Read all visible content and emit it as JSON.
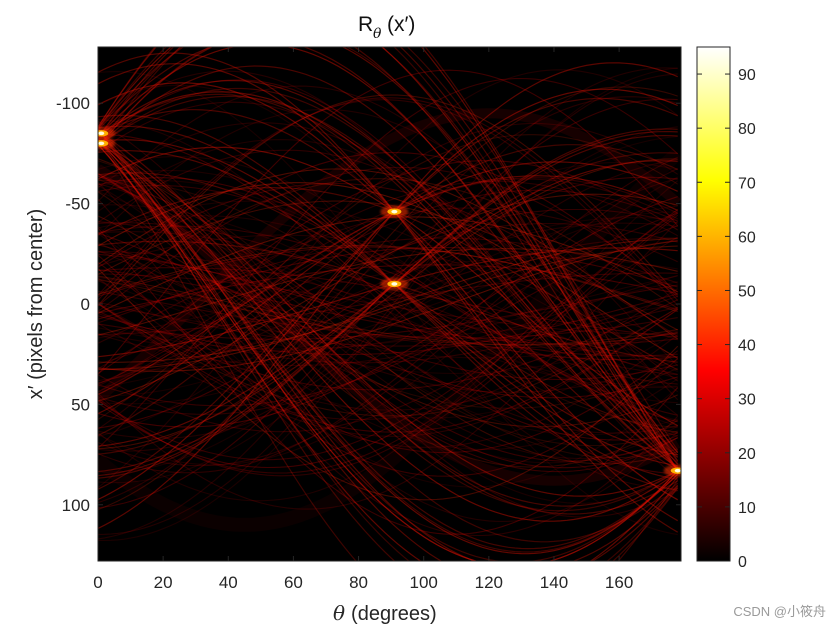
{
  "chart_data": {
    "type": "heatmap",
    "title": {
      "main": "R",
      "subscript": "θ",
      "argument": "(x′)"
    },
    "xlabel": {
      "symbol": "θ",
      "text": "(degrees)"
    },
    "ylabel": "x′ (pixels from center)",
    "xlim": [
      0,
      179
    ],
    "ylim": [
      -128,
      128
    ],
    "y_reversed": true,
    "x_ticks": [
      0,
      20,
      40,
      60,
      80,
      100,
      120,
      140,
      160
    ],
    "x_tick_labels": [
      "0",
      "20",
      "40",
      "60",
      "80",
      "100",
      "120",
      "140",
      "160"
    ],
    "y_ticks": [
      -100,
      -50,
      0,
      50,
      100
    ],
    "y_tick_labels": [
      "-100",
      "-50",
      "0",
      "50",
      "100"
    ],
    "colormap": "hot",
    "colorbar": {
      "range": [
        0,
        95
      ],
      "ticks": [
        0,
        10,
        20,
        30,
        40,
        50,
        60,
        70,
        80,
        90
      ],
      "tick_labels": [
        "0",
        "10",
        "20",
        "30",
        "40",
        "50",
        "60",
        "70",
        "80",
        "90"
      ]
    },
    "peaks": [
      {
        "theta": 1,
        "x_prime": -85,
        "value": 95
      },
      {
        "theta": 1,
        "x_prime": -80,
        "value": 90
      },
      {
        "theta": 91,
        "x_prime": -46,
        "value": 85
      },
      {
        "theta": 91,
        "x_prime": -10,
        "value": 90
      },
      {
        "theta": 178,
        "x_prime": 83,
        "value": 80
      }
    ]
  },
  "watermark": "CSDN @小筱舟",
  "colors": {
    "background": "#000000",
    "low": "#000000",
    "mid": "#ff0000",
    "high": "#ffff00",
    "max": "#ffffff"
  }
}
